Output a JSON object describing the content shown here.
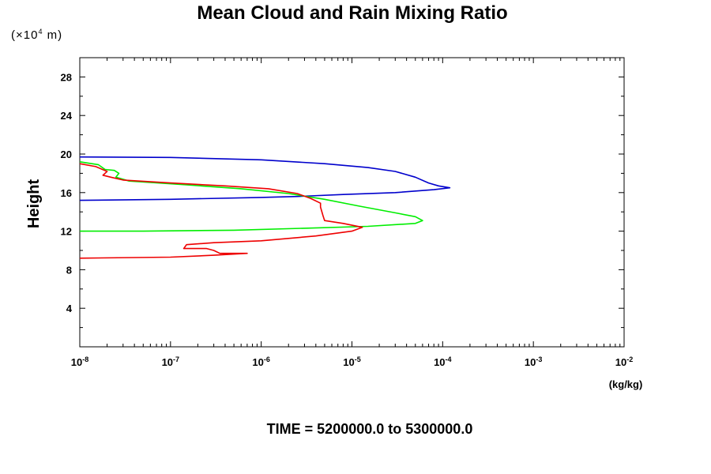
{
  "chart_data": {
    "type": "line",
    "title": "Mean Cloud and Rain Mixing Ratio",
    "ylabel": "Height",
    "xlabel": "(kg/kg)",
    "y_units_label": "(×10",
    "y_units_exp": "4",
    "y_units_suffix": " m)",
    "footer": "TIME = 5200000.0 to 5300000.0",
    "x_scale": "log",
    "xlim": [
      1e-08,
      0.01
    ],
    "ylim": [
      0,
      30
    ],
    "x_ticks": [
      {
        "base": "10",
        "exp": "-8",
        "value": 1e-08
      },
      {
        "base": "10",
        "exp": "-7",
        "value": 1e-07
      },
      {
        "base": "10",
        "exp": "-6",
        "value": 1e-06
      },
      {
        "base": "10",
        "exp": "-5",
        "value": 1e-05
      },
      {
        "base": "10",
        "exp": "-4",
        "value": 0.0001
      },
      {
        "base": "10",
        "exp": "-3",
        "value": 0.001
      },
      {
        "base": "10",
        "exp": "-2",
        "value": 0.01
      }
    ],
    "y_ticks": [
      {
        "label": "4",
        "value": 4
      },
      {
        "label": "8",
        "value": 8
      },
      {
        "label": "12",
        "value": 12
      },
      {
        "label": "16",
        "value": 16
      },
      {
        "label": "20",
        "value": 20
      },
      {
        "label": "24",
        "value": 24
      },
      {
        "label": "28",
        "value": 28
      }
    ],
    "grid": false,
    "legend": "none",
    "series": [
      {
        "color": "#0000cc",
        "points": [
          [
            1e-08,
            19.7
          ],
          [
            1e-07,
            19.65
          ],
          [
            1e-06,
            19.4
          ],
          [
            5e-06,
            19.0
          ],
          [
            1.5e-05,
            18.6
          ],
          [
            3e-05,
            18.2
          ],
          [
            5e-05,
            17.6
          ],
          [
            7e-05,
            17.0
          ],
          [
            9e-05,
            16.7
          ],
          [
            0.00012,
            16.5
          ],
          [
            8e-05,
            16.3
          ],
          [
            3e-05,
            16.0
          ],
          [
            8e-06,
            15.8
          ],
          [
            2.5e-06,
            15.6
          ],
          [
            1e-06,
            15.5
          ],
          [
            1e-07,
            15.3
          ],
          [
            1e-08,
            15.2
          ]
        ]
      },
      {
        "color": "#00ee00",
        "points": [
          [
            1e-08,
            19.2
          ],
          [
            1.6e-08,
            18.9
          ],
          [
            1.9e-08,
            18.4
          ],
          [
            2.4e-08,
            18.3
          ],
          [
            2.7e-08,
            18.0
          ],
          [
            2.5e-08,
            17.6
          ],
          [
            3.5e-08,
            17.2
          ],
          [
            1.5e-07,
            16.8
          ],
          [
            6e-07,
            16.4
          ],
          [
            2e-06,
            15.9
          ],
          [
            5e-06,
            15.3
          ],
          [
            1.2e-05,
            14.6
          ],
          [
            3e-05,
            13.9
          ],
          [
            5e-05,
            13.5
          ],
          [
            6e-05,
            13.1
          ],
          [
            5e-05,
            12.8
          ],
          [
            1.5e-05,
            12.5
          ],
          [
            3e-06,
            12.3
          ],
          [
            5e-07,
            12.1
          ],
          [
            5e-08,
            12.0
          ],
          [
            1e-08,
            12.0
          ]
        ]
      },
      {
        "color": "#ee0000",
        "points": [
          [
            1e-08,
            19.0
          ],
          [
            1.5e-08,
            18.7
          ],
          [
            2e-08,
            18.2
          ],
          [
            1.8e-08,
            17.8
          ],
          [
            2.2e-08,
            17.6
          ],
          [
            3e-08,
            17.3
          ],
          [
            1e-07,
            17.0
          ],
          [
            4e-07,
            16.7
          ],
          [
            1.2e-06,
            16.4
          ],
          [
            2.5e-06,
            15.9
          ],
          [
            3.5e-06,
            15.4
          ],
          [
            4.5e-06,
            14.9
          ],
          [
            4.5e-06,
            14.5
          ],
          [
            4.8e-06,
            13.6
          ],
          [
            5e-06,
            13.1
          ],
          [
            8e-06,
            12.8
          ],
          [
            1.3e-05,
            12.4
          ],
          [
            1e-05,
            12.0
          ],
          [
            4e-06,
            11.5
          ],
          [
            1e-06,
            11.0
          ],
          [
            3e-07,
            10.8
          ],
          [
            1.5e-07,
            10.6
          ],
          [
            1.4e-07,
            10.2
          ],
          [
            2.5e-07,
            10.2
          ],
          [
            3e-07,
            10.0
          ],
          [
            3.5e-07,
            9.7
          ],
          [
            7e-07,
            9.7
          ],
          [
            3e-07,
            9.5
          ],
          [
            1e-07,
            9.3
          ],
          [
            1e-08,
            9.2
          ]
        ]
      }
    ]
  }
}
